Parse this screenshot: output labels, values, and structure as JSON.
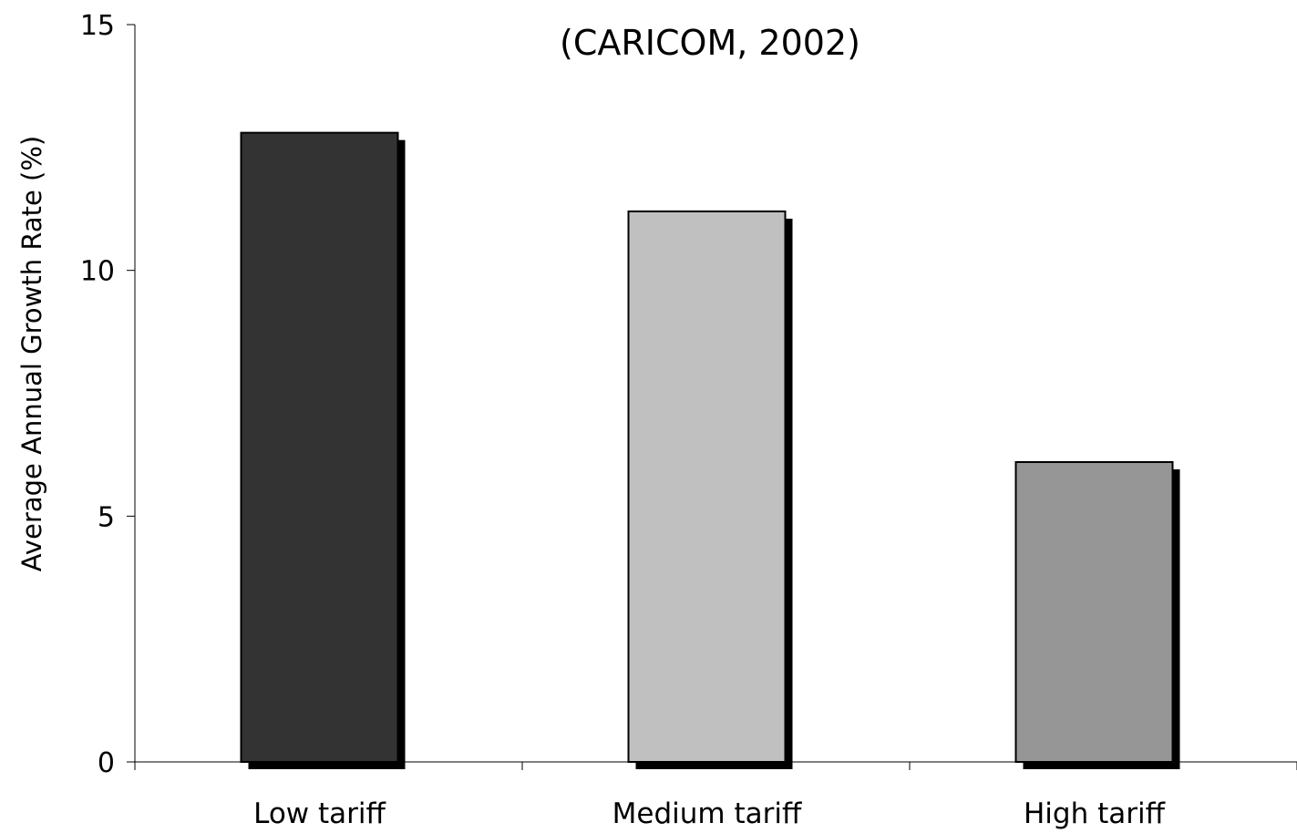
{
  "chart_data": {
    "type": "bar",
    "title": "(CARICOM, 2002)",
    "xlabel": "",
    "ylabel": "Average Annual Growth Rate (%)",
    "categories": [
      "Low tariff",
      "Medium tariff",
      "High tariff"
    ],
    "values": [
      12.8,
      11.2,
      6.1
    ],
    "ylim": [
      0,
      15
    ],
    "yticks": [
      "0",
      "5",
      "10",
      "15"
    ],
    "grid": false,
    "legend": "none",
    "colors": [
      "#333333",
      "#c0c0c0",
      "#969696"
    ],
    "shadow_color": "#000000",
    "axis_color": "#000000"
  }
}
